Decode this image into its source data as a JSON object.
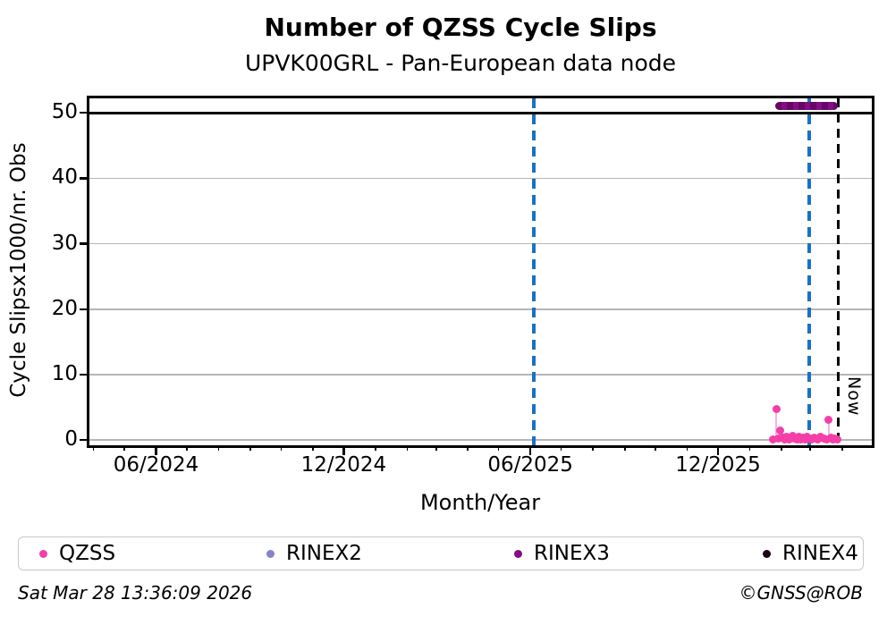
{
  "header": {
    "title": "Number of QZSS Cycle Slips",
    "subtitle": "UPVK00GRL - Pan-European data node"
  },
  "legend": {
    "entries": [
      {
        "label": "QZSS",
        "color": "#f43ea8"
      },
      {
        "label": "RINEX2",
        "color": "#8684c7"
      },
      {
        "label": "RINEX3",
        "color": "#840c84"
      },
      {
        "label": "RINEX4",
        "color": "#1e0019"
      }
    ]
  },
  "footer": {
    "timestamp": "Sat Mar 28 13:36:09 2026",
    "credit": "©GNSS@ROB"
  },
  "chart_data": {
    "type": "scatter",
    "title": "Number of QZSS Cycle Slips",
    "subtitle": "UPVK00GRL - Pan-European data node",
    "xlabel": "Month/Year",
    "ylabel": "Cycle Slipsx1000/nr. Obs",
    "xlim": [
      "2024-03-28",
      "2026-04-30"
    ],
    "ylim": [
      -0.8,
      52.2
    ],
    "yticks": [
      0,
      10,
      20,
      30,
      40,
      50
    ],
    "xticks": [
      {
        "date": "2024-06-01",
        "label": "06/2024"
      },
      {
        "date": "2024-12-01",
        "label": "12/2024"
      },
      {
        "date": "2025-06-01",
        "label": "06/2025"
      },
      {
        "date": "2025-12-01",
        "label": "12/2025"
      }
    ],
    "minor_ticks": "monthly",
    "grid": {
      "on": true,
      "color": "#b6b6b6"
    },
    "clip_line": {
      "value": 50,
      "color": "#000000"
    },
    "vlines": [
      {
        "date": "2025-06-04",
        "color": "#1b71c3",
        "style": "dashed",
        "label": ""
      },
      {
        "date": "2026-02-28",
        "color": "#1b71c3",
        "style": "dashed",
        "label": ""
      },
      {
        "date": "2026-03-28",
        "color": "#000000",
        "style": "dashed",
        "label": "Now"
      }
    ],
    "series": [
      {
        "name": "QZSS",
        "color": "#f43ea8",
        "marker": "circle",
        "points": [
          [
            "2026-01-24",
            0.15
          ],
          [
            "2026-01-27",
            4.8
          ],
          [
            "2026-01-29",
            0.2
          ],
          [
            "2026-01-31",
            1.4
          ],
          [
            "2026-02-02",
            0.35
          ],
          [
            "2026-02-04",
            0.1
          ],
          [
            "2026-02-06",
            0.55
          ],
          [
            "2026-02-08",
            0.15
          ],
          [
            "2026-02-10",
            0.4
          ],
          [
            "2026-02-12",
            0.7
          ],
          [
            "2026-02-14",
            0.2
          ],
          [
            "2026-02-16",
            0.1
          ],
          [
            "2026-02-18",
            0.45
          ],
          [
            "2026-02-20",
            0.15
          ],
          [
            "2026-02-22",
            0.3
          ],
          [
            "2026-02-24",
            0.1
          ],
          [
            "2026-02-26",
            0.5
          ],
          [
            "2026-02-28",
            0.2
          ],
          [
            "2026-03-02",
            0.1
          ],
          [
            "2026-03-05",
            0.35
          ],
          [
            "2026-03-08",
            0.15
          ],
          [
            "2026-03-11",
            0.45
          ],
          [
            "2026-03-14",
            0.2
          ],
          [
            "2026-03-17",
            0.1
          ],
          [
            "2026-03-19",
            3.1
          ],
          [
            "2026-03-21",
            0.3
          ],
          [
            "2026-03-23",
            0.15
          ],
          [
            "2026-03-25",
            0.25
          ],
          [
            "2026-03-27",
            0.1
          ]
        ]
      },
      {
        "name": "RINEX2",
        "color": "#8684c7",
        "marker": "circle",
        "points": []
      },
      {
        "name": "RINEX3",
        "color": "#840c84",
        "marker": "circle",
        "points": [],
        "band": {
          "start": "2026-01-26",
          "end": "2026-03-28",
          "value": 51.1
        }
      },
      {
        "name": "RINEX4",
        "color": "#1e0019",
        "marker": "circle",
        "points": []
      }
    ]
  }
}
